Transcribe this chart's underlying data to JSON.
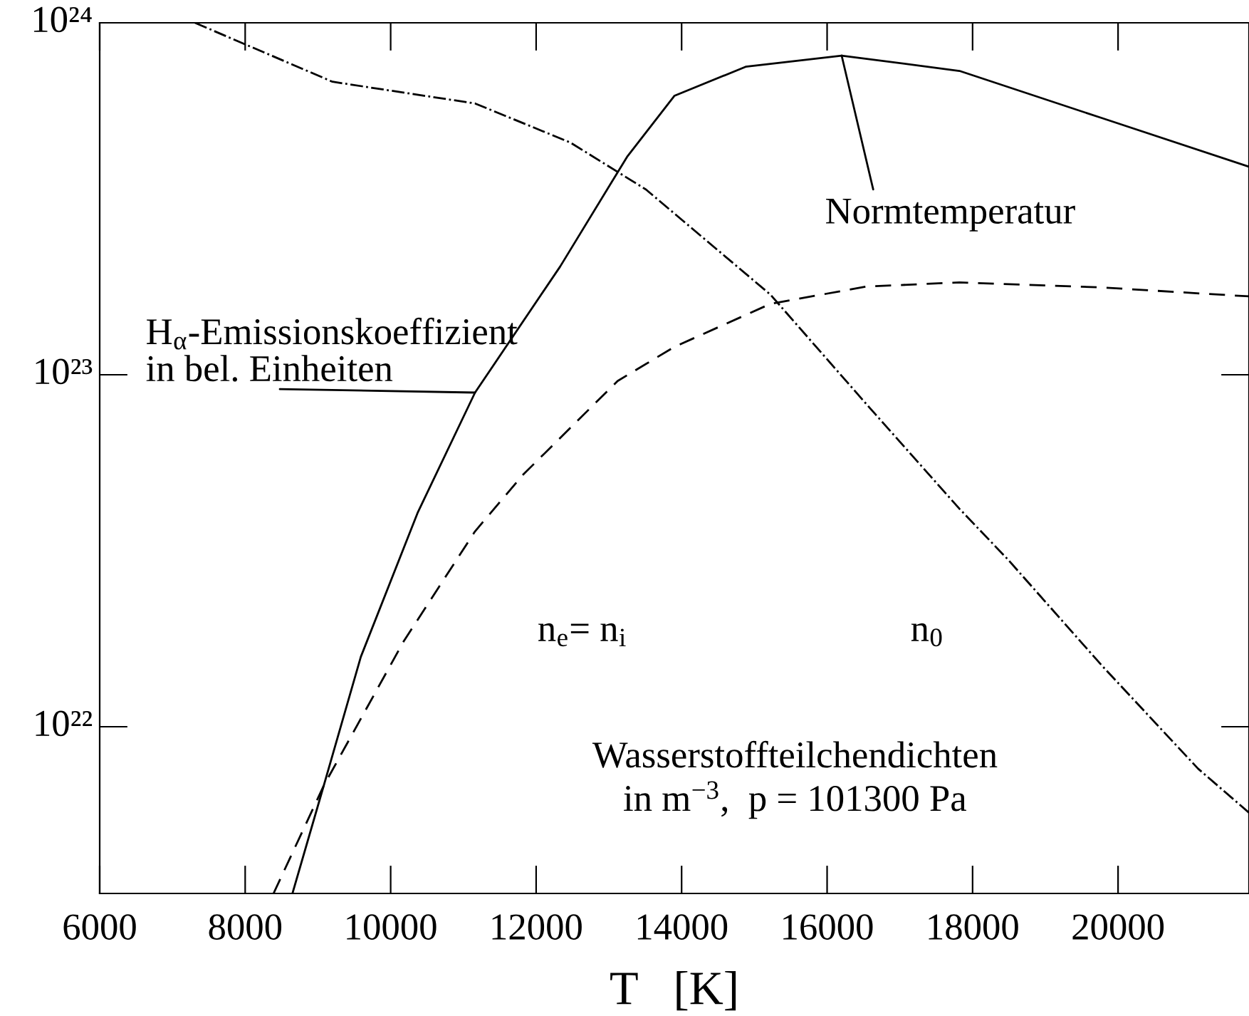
{
  "chart_data": {
    "type": "line",
    "xlabel": "T   [K]",
    "log": "y",
    "grid": false,
    "legend": false,
    "marker": "none",
    "xlim": [
      6000,
      21800
    ],
    "ylim": [
      3.36e+21,
      1e+24
    ],
    "xticks": [
      6000,
      8000,
      10000,
      12000,
      14000,
      16000,
      18000,
      20000
    ],
    "yticks": [
      {
        "value": 1e+22,
        "label": "10²²"
      },
      {
        "value": 1e+23,
        "label": "10²³"
      },
      {
        "value": 1e+24,
        "label": "10²⁴"
      }
    ],
    "series": [
      {
        "color": "#000000",
        "line_style": "solid",
        "x": [
          8650,
          9080,
          9590,
          10370,
          11160,
          12330,
          13250,
          13900,
          14880,
          16200,
          17820,
          19780,
          21800
        ],
        "values": [
          3.36e+21,
          6.8e+21,
          1.58e+22,
          4.05e+22,
          8.9e+22,
          2.03e+23,
          4.16e+23,
          6.2e+23,
          7.5e+23,
          8.07e+23,
          7.3e+23,
          5.36e+23,
          3.9e+23
        ]
      },
      {
        "color": "#000000",
        "line_style": "dashed",
        "x": [
          8390,
          9080,
          10180,
          11160,
          11820,
          13120,
          13900,
          15220,
          16530,
          17820,
          19780,
          21800
        ],
        "values": [
          3.36e+21,
          6.8e+21,
          1.75e+22,
          3.59e+22,
          5.2e+22,
          9.6e+22,
          1.2e+23,
          1.59e+23,
          1.78e+23,
          1.83e+23,
          1.77e+23,
          1.67e+23
        ]
      },
      {
        "color": "#000000",
        "line_style": "dashdot",
        "x": [
          7310,
          9200,
          11160,
          12470,
          13510,
          15220,
          16530,
          17820,
          18490,
          19780,
          21100,
          21800
        ],
        "values": [
          1e+24,
          6.8e+23,
          5.9e+23,
          4.57e+23,
          3.36e+23,
          1.69e+23,
          8.3e+22,
          4.16e+22,
          2.98e+22,
          1.49e+22,
          7.6e+21,
          5.7e+21
        ]
      }
    ],
    "annotations": [
      {
        "text": "H$_{α}$-Emissionskoeffizient\nin bel. Einheiten",
        "x": 11160,
        "y": 8.9e+22
      },
      {
        "text": "Normtemperatur",
        "x": 16200,
        "y": 8.07e+23
      },
      "n$_{e}$= n$_{i}$",
      "n$_{0}$",
      "Wasserstoffteilchendichten\nin m$^{−3}$,  p = 101300 Pa"
    ]
  }
}
